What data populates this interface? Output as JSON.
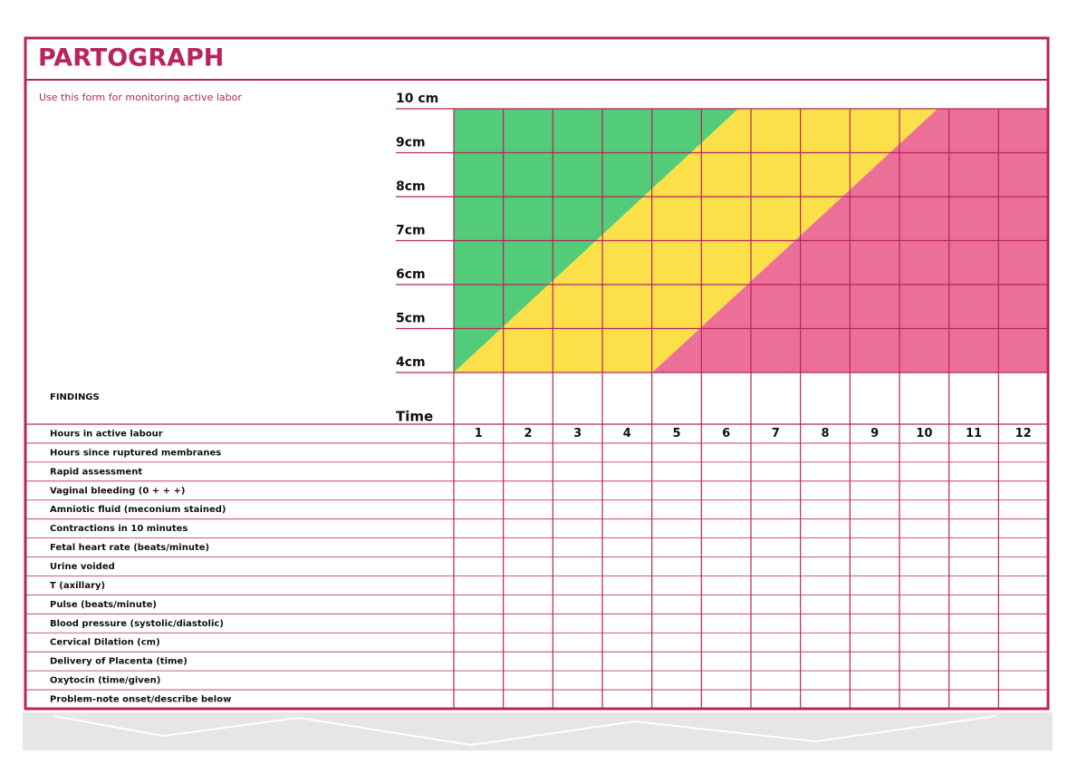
{
  "header": {
    "title": "PARTOGRAPH",
    "subtitle": "Use this form for monitoring active labor"
  },
  "dilation_labels": [
    "10 cm",
    "9cm",
    "8cm",
    "7cm",
    "6cm",
    "5cm",
    "4cm"
  ],
  "findings_label": "FINDINGS",
  "time_label": "Time",
  "hours": [
    "1",
    "2",
    "3",
    "4",
    "5",
    "6",
    "7",
    "8",
    "9",
    "10",
    "11",
    "12"
  ],
  "rows": [
    "Hours in active labour",
    "Hours since ruptured membranes",
    "Rapid assessment",
    "Vaginal bleeding (0 + + +)",
    "Amniotic fluid (meconium stained)",
    "Contractions in 10 minutes",
    "Fetal heart rate (beats/minute)",
    "Urine voided",
    "T (axillary)",
    "Pulse (beats/minute)",
    "Blood pressure (systolic/diastolic)",
    "Cervical Dilation (cm)",
    "Delivery of Placenta (time)",
    "Oxytocin (time/given)",
    "Problem-note onset/describe below"
  ]
}
